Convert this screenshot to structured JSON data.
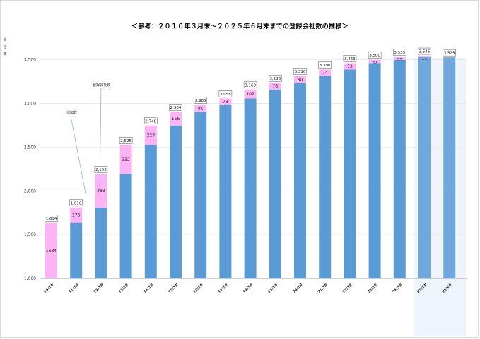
{
  "chart_data": {
    "type": "bar",
    "title": "＜参考：２０１０年３月末～２０２５年６月末までの登録会社数の推移＞",
    "ylabel": "会社数",
    "ylim": [
      1000,
      3700
    ],
    "yticks": [
      "1,000",
      "1,500",
      "2,000",
      "2,500",
      "3,000",
      "3,500"
    ],
    "ytick_values": [
      1000,
      1500,
      2000,
      2500,
      3000,
      3500
    ],
    "grid": true,
    "categories": [
      "10/3末",
      "11/3末",
      "12/3末",
      "13/3末",
      "14/3末",
      "15/3末",
      "16/3末",
      "17/3末",
      "18/3末",
      "19/3末",
      "20/3末",
      "21/3末",
      "22/3末",
      "23/3末",
      "24/3末",
      "25/3末",
      "25/6末"
    ],
    "highlight_categories": [
      "25/3末",
      "25/6末"
    ],
    "series": [
      {
        "name": "",
        "values": [
          null,
          1634,
          1810,
          2193,
          2525,
          2748,
          2904,
          2985,
          3058,
          3160,
          3236,
          3316,
          3390,
          3463,
          3500,
          3535,
          3529
        ],
        "color": "#5b9bd5"
      },
      {
        "name": "増加数",
        "values": [
          1634,
          176,
          383,
          332,
          223,
          156,
          81,
          73,
          102,
          76,
          80,
          74,
          73,
          37,
          35,
          11,
          null
        ],
        "labels": [
          "1634",
          "176",
          "383",
          "332",
          "223",
          "156",
          "81",
          "73",
          "102",
          "76",
          "80",
          "74",
          "73",
          "37",
          "35",
          "11",
          ""
        ],
        "color": "#ffb3f7"
      }
    ],
    "total_labels": [
      "1,634",
      "1,810",
      "2,193",
      "2,525",
      "2,748",
      "2,904",
      "2,985",
      "3,058",
      "3,160",
      "3,236",
      "3,316",
      "3,390",
      "3,463",
      "3,500",
      "3,535",
      "3,546",
      "3,529"
    ],
    "totals": [
      1634,
      1810,
      2193,
      2525,
      2748,
      2904,
      2985,
      3058,
      3160,
      3236,
      3316,
      3390,
      3463,
      3500,
      3535,
      3546,
      3529
    ],
    "annotations": [
      {
        "text": "登録会社数",
        "points_to": "12/3末"
      },
      {
        "text": "増加数",
        "points_to": "11/3末"
      }
    ],
    "colors": {
      "base": "#5b9bd5",
      "base_highlight": "#6fa8dc",
      "increase": "#ffb3f7",
      "highlight_bg": "#eef4fb",
      "grid": "#e6e6e6"
    }
  }
}
